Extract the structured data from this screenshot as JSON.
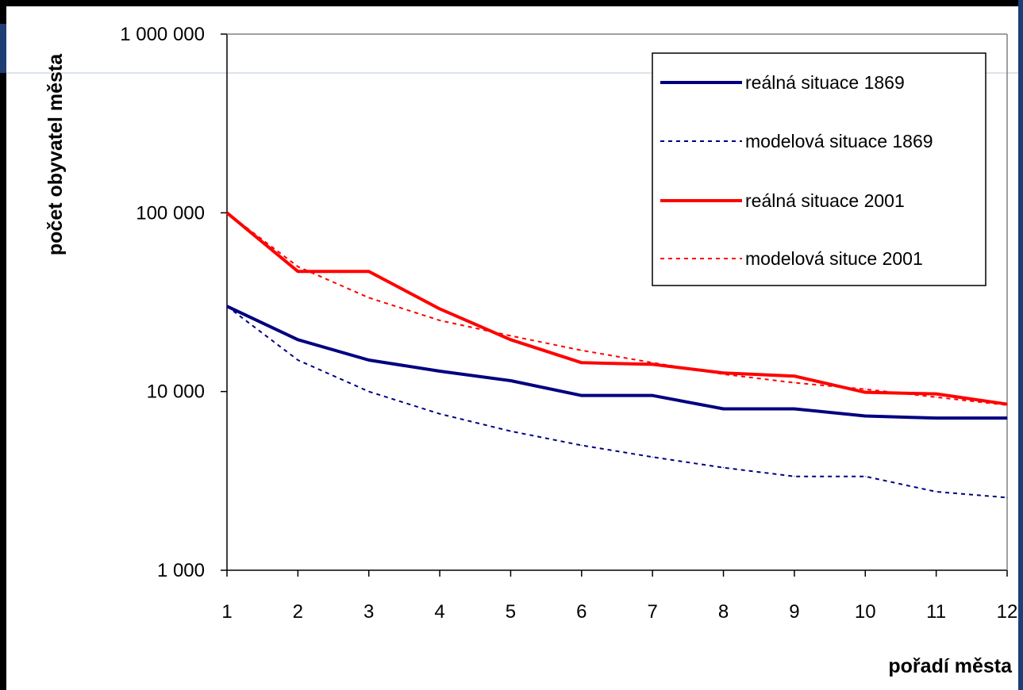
{
  "chart_data": {
    "type": "line",
    "ylabel": "počet obyvatel města",
    "xlabel": "pořadí města",
    "y_scale": "log",
    "ylim": [
      1000,
      1000000
    ],
    "y_ticks": [
      {
        "value": 1000,
        "label": "1 000"
      },
      {
        "value": 10000,
        "label": "10 000"
      },
      {
        "value": 100000,
        "label": "100 000"
      },
      {
        "value": 1000000,
        "label": "1 000 000"
      }
    ],
    "x": [
      1,
      2,
      3,
      4,
      5,
      6,
      7,
      8,
      9,
      10,
      11,
      12
    ],
    "x_tick_labels": [
      "1",
      "2",
      "3",
      "4",
      "5",
      "6",
      "7",
      "8",
      "9",
      "10",
      "11",
      "12"
    ],
    "legend_position": "top-right",
    "series": [
      {
        "name": "reálná situace 1869",
        "color": "#000080",
        "style": "solid",
        "values": [
          30000,
          19500,
          15000,
          13000,
          11500,
          9500,
          9500,
          8000,
          8000,
          7300,
          7100,
          7100
        ]
      },
      {
        "name": "modelová situace 1869",
        "color": "#000080",
        "style": "dashed",
        "values": [
          30000,
          15000,
          10000,
          7500,
          6000,
          5000,
          4300,
          3750,
          3350,
          3350,
          2750,
          2550
        ]
      },
      {
        "name": "reálná situace 2001",
        "color": "#ff0000",
        "style": "solid",
        "values": [
          100000,
          47000,
          47000,
          29000,
          19500,
          14500,
          14200,
          12700,
          12200,
          9900,
          9700,
          8500
        ]
      },
      {
        "name": "modelová situce 2001",
        "color": "#ff0000",
        "style": "dashed",
        "values": [
          100000,
          50000,
          33500,
          25000,
          20500,
          17000,
          14500,
          12500,
          11200,
          10300,
          9300,
          8400
        ]
      }
    ]
  }
}
